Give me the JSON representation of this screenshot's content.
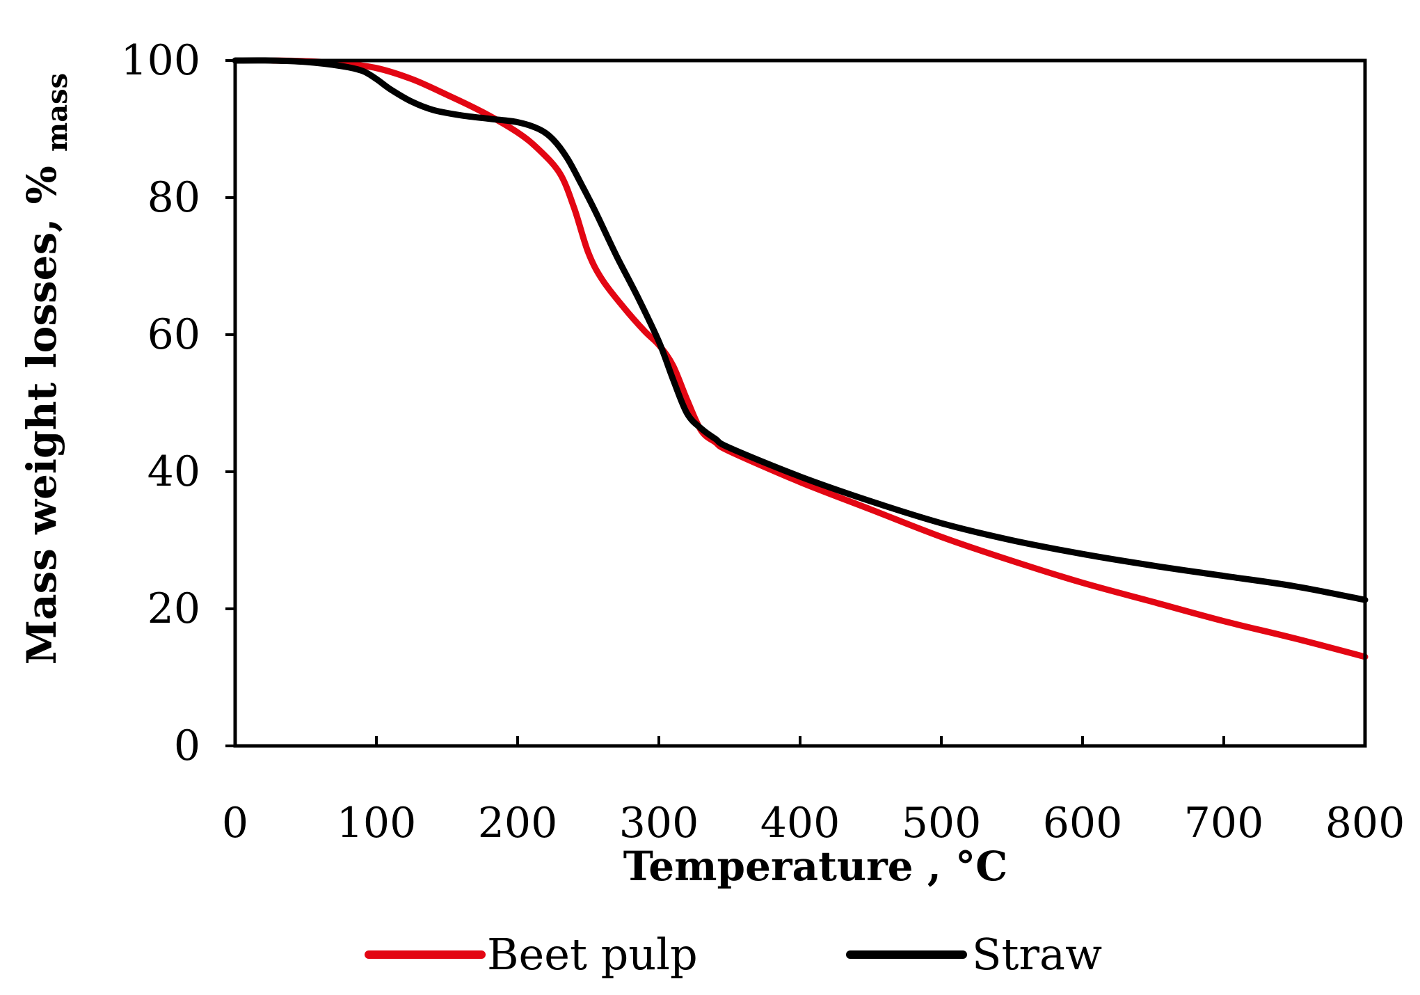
{
  "chart_data": {
    "type": "line",
    "title": "",
    "xlabel": "Temperature , °C",
    "ylabel_main": "Mass weight losses, %",
    "ylabel_sub": "mass",
    "xlim": [
      0,
      800
    ],
    "ylim": [
      0,
      100
    ],
    "xticks": [
      0,
      100,
      200,
      300,
      400,
      500,
      600,
      700,
      800
    ],
    "yticks": [
      0,
      20,
      40,
      60,
      80,
      100
    ],
    "grid": false,
    "legend_position": "bottom-center",
    "series": [
      {
        "name": "Beet pulp",
        "color": "#e30613",
        "x": [
          25,
          50,
          75,
          100,
          125,
          150,
          175,
          200,
          215,
          230,
          240,
          250,
          260,
          275,
          290,
          300,
          310,
          320,
          330,
          340,
          350,
          400,
          450,
          500,
          550,
          600,
          650,
          700,
          750,
          800
        ],
        "y": [
          100,
          99.9,
          99.6,
          98.9,
          97.3,
          95.0,
          92.5,
          89.5,
          87.0,
          83.5,
          78.5,
          72.0,
          68.0,
          64.0,
          60.5,
          58.5,
          55.5,
          50.5,
          46.0,
          44.3,
          43.0,
          38.5,
          34.5,
          30.5,
          27.0,
          23.8,
          21.0,
          18.2,
          15.7,
          13.0
        ]
      },
      {
        "name": "Straw",
        "color": "#000000",
        "x": [
          0,
          25,
          50,
          75,
          90,
          100,
          110,
          125,
          140,
          160,
          180,
          200,
          215,
          225,
          235,
          245,
          255,
          270,
          285,
          300,
          310,
          320,
          330,
          340,
          350,
          400,
          450,
          500,
          550,
          600,
          650,
          700,
          750,
          800
        ],
        "y": [
          100,
          100,
          99.8,
          99.2,
          98.5,
          97.3,
          95.8,
          94.0,
          92.8,
          92.0,
          91.5,
          91.0,
          90.0,
          88.5,
          85.8,
          82.0,
          78.0,
          71.5,
          65.5,
          59.0,
          53.5,
          48.5,
          46.3,
          44.8,
          43.5,
          39.3,
          35.7,
          32.5,
          30.0,
          28.0,
          26.3,
          24.8,
          23.3,
          21.3
        ]
      }
    ]
  }
}
